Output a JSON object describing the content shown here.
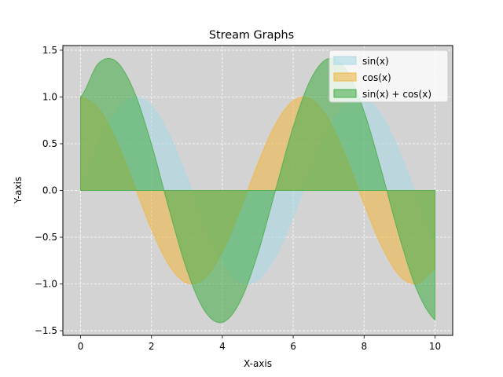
{
  "chart_data": {
    "type": "area",
    "title": "Stream Graphs",
    "xlabel": "X-axis",
    "ylabel": "Y-axis",
    "xlim": [
      -0.5,
      10.5
    ],
    "ylim": [
      -1.55,
      1.55
    ],
    "xticks": [
      0,
      2,
      4,
      6,
      8,
      10
    ],
    "xtick_labels": [
      "0",
      "2",
      "4",
      "6",
      "8",
      "10"
    ],
    "yticks": [
      -1.5,
      -1.0,
      -0.5,
      0.0,
      0.5,
      1.0,
      1.5
    ],
    "ytick_labels": [
      "−1.5",
      "−1.0",
      "−0.5",
      "0.0",
      "0.5",
      "1.0",
      "1.5"
    ],
    "grid": true,
    "grid_style": "dashed",
    "background_color": "#d3d3d3",
    "legend_position": "top-right",
    "x": [
      0,
      0.5,
      1,
      1.5,
      2,
      2.5,
      3,
      3.5,
      4,
      4.5,
      5,
      5.5,
      6,
      6.5,
      7,
      7.5,
      8,
      8.5,
      9,
      9.5,
      10
    ],
    "series": [
      {
        "name": "sin(x)",
        "color": "#add8e6",
        "values": [
          0,
          0.479,
          0.841,
          0.997,
          0.909,
          0.598,
          0.141,
          -0.351,
          -0.757,
          -0.978,
          -0.959,
          -0.706,
          -0.279,
          0.215,
          0.657,
          0.938,
          0.989,
          0.798,
          0.412,
          -0.075,
          -0.544
        ]
      },
      {
        "name": "cos(x)",
        "color": "#f0b849",
        "values": [
          1,
          0.878,
          0.54,
          0.071,
          -0.416,
          -0.801,
          -0.99,
          -0.936,
          -0.654,
          -0.211,
          0.284,
          0.709,
          0.96,
          0.977,
          0.754,
          0.347,
          -0.146,
          -0.602,
          -0.911,
          -0.997,
          -0.839
        ]
      },
      {
        "name": "sin(x) + cos(x)",
        "color": "#4caf50",
        "values": [
          1,
          1.357,
          1.382,
          1.068,
          0.493,
          -0.203,
          -0.849,
          -1.287,
          -1.41,
          -1.189,
          -0.675,
          0.003,
          0.681,
          1.192,
          1.411,
          1.285,
          0.843,
          0.196,
          -0.499,
          -1.072,
          -1.383
        ]
      }
    ]
  }
}
